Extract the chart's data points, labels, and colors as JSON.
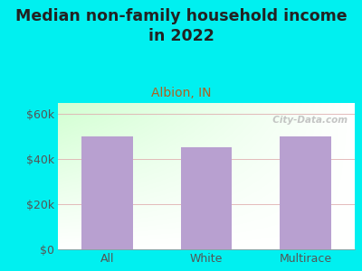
{
  "title": "Median non-family household income\nin 2022",
  "subtitle": "Albion, IN",
  "categories": [
    "All",
    "White",
    "Multirace"
  ],
  "values": [
    50000,
    45500,
    50000
  ],
  "bar_color": "#b8a0d0",
  "background_outer": "#00f0f0",
  "background_plot_gradient_tl": "#d8f0d8",
  "background_plot_gradient_br": "#f8fff8",
  "title_color": "#222222",
  "subtitle_color": "#b06020",
  "tick_color": "#555555",
  "ylabel_ticks": [
    "$0",
    "$20k",
    "$40k",
    "$60k"
  ],
  "ytick_values": [
    0,
    20000,
    40000,
    60000
  ],
  "ylim": [
    0,
    65000
  ],
  "grid_color": "#e0b0b0",
  "watermark": "  City-Data.com",
  "title_fontsize": 12.5,
  "subtitle_fontsize": 10,
  "tick_fontsize": 9
}
